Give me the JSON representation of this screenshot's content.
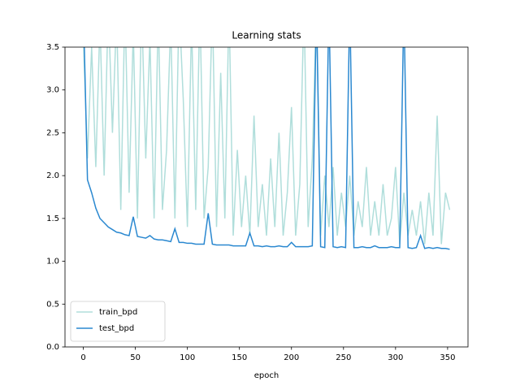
{
  "chart_data": {
    "type": "line",
    "title": "Learning stats",
    "x_label": "epoch",
    "x": [
      0,
      4,
      8,
      12,
      16,
      20,
      24,
      28,
      32,
      36,
      40,
      44,
      48,
      52,
      56,
      60,
      64,
      68,
      72,
      76,
      80,
      84,
      88,
      92,
      96,
      100,
      104,
      108,
      112,
      116,
      120,
      124,
      128,
      132,
      136,
      140,
      144,
      148,
      152,
      156,
      160,
      164,
      168,
      172,
      176,
      180,
      184,
      188,
      192,
      196,
      200,
      204,
      208,
      212,
      216,
      220,
      224,
      228,
      232,
      236,
      240,
      244,
      248,
      252,
      256,
      260,
      264,
      268,
      272,
      276,
      280,
      284,
      288,
      292,
      296,
      300,
      304,
      308,
      312,
      316,
      320,
      324,
      328,
      332,
      336,
      340,
      344,
      348,
      352
    ],
    "series": [
      {
        "name": "train_bpd",
        "color": "#b0dedb",
        "values": [
          3.6,
          2.2,
          3.5,
          2.1,
          3.8,
          2.0,
          4.0,
          2.5,
          3.9,
          1.6,
          4.0,
          1.8,
          3.7,
          1.5,
          4.0,
          2.2,
          3.6,
          1.5,
          3.9,
          1.6,
          2.3,
          3.8,
          1.5,
          4.0,
          2.9,
          1.4,
          3.8,
          1.6,
          4.0,
          1.5,
          2.1,
          4.0,
          1.4,
          3.2,
          1.5,
          4.0,
          1.3,
          2.3,
          1.4,
          2.0,
          1.3,
          2.7,
          1.4,
          1.9,
          1.3,
          2.2,
          1.4,
          2.5,
          1.3,
          1.8,
          2.8,
          1.3,
          1.9,
          4.0,
          1.4,
          2.2,
          4.0,
          1.3,
          2.0,
          1.4,
          2.1,
          1.3,
          1.8,
          1.4,
          2.0,
          1.3,
          1.7,
          1.4,
          2.1,
          1.3,
          1.7,
          1.3,
          1.9,
          1.3,
          1.5,
          2.1,
          1.2,
          1.8,
          1.3,
          1.6,
          1.3,
          1.7,
          1.2,
          1.8,
          1.3,
          2.7,
          1.2,
          1.8,
          1.6
        ]
      },
      {
        "name": "test_bpd",
        "color": "#2a88d0",
        "values": [
          4.0,
          1.95,
          1.8,
          1.62,
          1.5,
          1.45,
          1.4,
          1.37,
          1.34,
          1.33,
          1.31,
          1.3,
          1.52,
          1.29,
          1.28,
          1.27,
          1.3,
          1.26,
          1.25,
          1.25,
          1.24,
          1.23,
          1.38,
          1.22,
          1.22,
          1.21,
          1.21,
          1.2,
          1.2,
          1.2,
          1.56,
          1.2,
          1.19,
          1.19,
          1.19,
          1.19,
          1.18,
          1.18,
          1.18,
          1.18,
          1.33,
          1.18,
          1.18,
          1.17,
          1.18,
          1.17,
          1.17,
          1.18,
          1.17,
          1.17,
          1.22,
          1.17,
          1.17,
          1.17,
          1.17,
          1.18,
          4.0,
          1.17,
          1.16,
          4.0,
          1.17,
          1.16,
          1.17,
          1.16,
          4.0,
          1.16,
          1.16,
          1.17,
          1.16,
          1.16,
          1.18,
          1.16,
          1.16,
          1.16,
          1.17,
          1.16,
          1.16,
          4.0,
          1.16,
          1.15,
          1.16,
          1.3,
          1.15,
          1.16,
          1.15,
          1.16,
          1.15,
          1.15,
          1.14
        ]
      }
    ],
    "xlim": [
      -17.6,
      369.6
    ],
    "xticks": [
      0,
      50,
      100,
      150,
      200,
      250,
      300,
      350
    ],
    "ylim": [
      0,
      3.5
    ],
    "yticks": [
      {
        "value": 0,
        "label": "0.0"
      },
      0.5,
      {
        "value": 1,
        "label": "1.0"
      },
      1.5,
      {
        "value": 2,
        "label": "2.0"
      },
      2.5,
      {
        "value": 3,
        "label": "3.0"
      },
      3.5
    ],
    "legend": "lower left"
  }
}
